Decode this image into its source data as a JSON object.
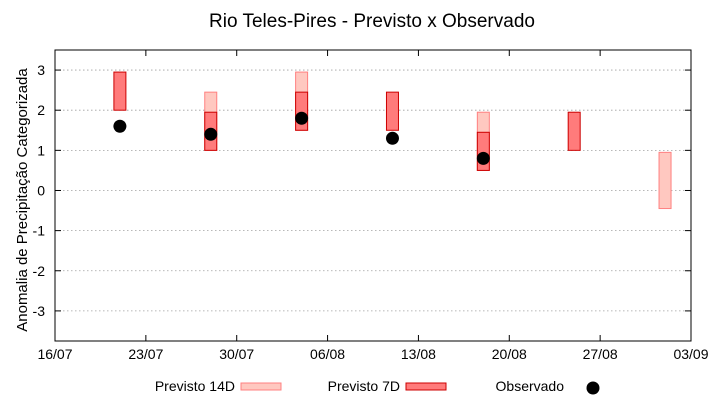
{
  "chart_data": {
    "type": "range-bar",
    "title": "Rio Teles-Pires - Previsto x Observado",
    "xlabel": "",
    "ylabel": "Anomalia de Precipitação Categorizada",
    "ylim": [
      -3.75,
      3.5
    ],
    "yticks": [
      3,
      2,
      1,
      0,
      -1,
      -2,
      -3
    ],
    "xlim": [
      "2020-07-16",
      "2020-09-03"
    ],
    "xticks": [
      {
        "date": "2020-07-16",
        "label": "16/07"
      },
      {
        "date": "2020-07-23",
        "label": "23/07"
      },
      {
        "date": "2020-07-30",
        "label": "30/07"
      },
      {
        "date": "2020-08-06",
        "label": "06/08"
      },
      {
        "date": "2020-08-13",
        "label": "13/08"
      },
      {
        "date": "2020-08-20",
        "label": "20/08"
      },
      {
        "date": "2020-08-27",
        "label": "27/08"
      },
      {
        "date": "2020-09-03",
        "label": "03/09"
      }
    ],
    "grid": true,
    "legend_position": "bottom",
    "series": [
      {
        "name": "Previsto 14D",
        "color": "#ffc8c0",
        "stroke": "#ff8080",
        "ranges": [
          {
            "date": "2020-07-28",
            "low": 1.0,
            "high": 2.45
          },
          {
            "date": "2020-08-04",
            "low": 1.5,
            "high": 2.95
          },
          {
            "date": "2020-08-18",
            "low": 0.5,
            "high": 1.95
          },
          {
            "date": "2020-09-01",
            "low": -0.45,
            "high": 0.95
          }
        ]
      },
      {
        "name": "Previsto 7D",
        "color": "#ff7b7b",
        "stroke": "#cc0000",
        "ranges": [
          {
            "date": "2020-07-21",
            "low": 2.0,
            "high": 2.95
          },
          {
            "date": "2020-07-28",
            "low": 1.0,
            "high": 1.95
          },
          {
            "date": "2020-08-04",
            "low": 1.5,
            "high": 2.45
          },
          {
            "date": "2020-08-11",
            "low": 1.5,
            "high": 2.45
          },
          {
            "date": "2020-08-18",
            "low": 0.5,
            "high": 1.45
          },
          {
            "date": "2020-08-25",
            "low": 1.0,
            "high": 1.95
          }
        ]
      },
      {
        "name": "Observado",
        "color": "#000000",
        "points": [
          {
            "date": "2020-07-21",
            "value": 1.6
          },
          {
            "date": "2020-07-28",
            "value": 1.4
          },
          {
            "date": "2020-08-04",
            "value": 1.8
          },
          {
            "date": "2020-08-11",
            "value": 1.3
          },
          {
            "date": "2020-08-18",
            "value": 0.8
          }
        ]
      }
    ]
  }
}
